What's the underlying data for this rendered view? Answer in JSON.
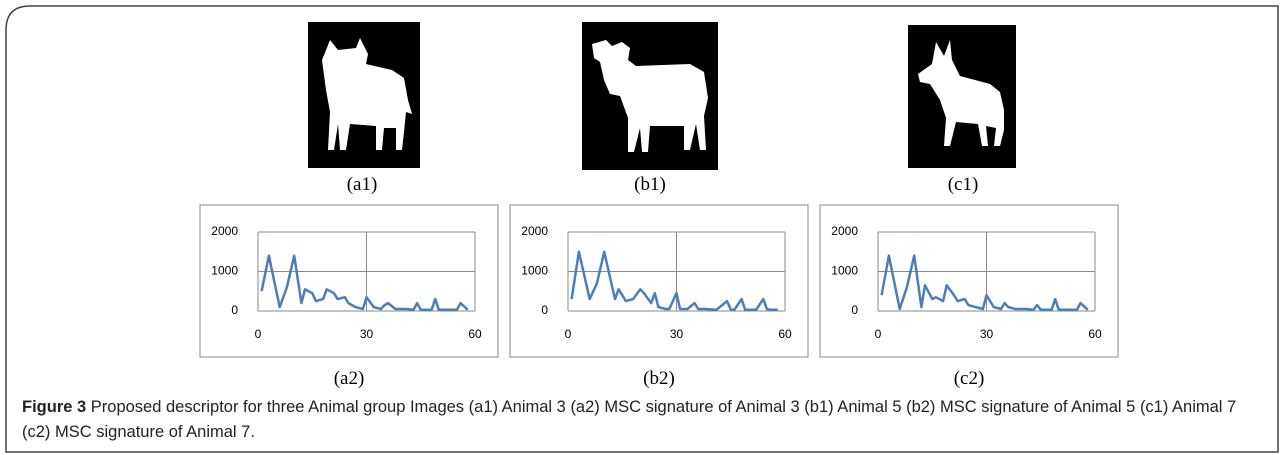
{
  "images": [
    "(a1)",
    "(b1)",
    "(c1)"
  ],
  "chart_data": [
    {
      "type": "line",
      "label": "(a2)",
      "color": "#4a7ebb",
      "x": [
        1,
        3,
        6,
        8,
        10,
        12,
        13,
        15,
        16,
        18,
        19,
        21,
        22,
        24,
        25,
        27,
        29,
        30,
        32,
        34,
        35,
        36,
        38,
        41,
        43,
        44,
        45,
        48,
        49,
        50,
        53,
        55,
        56,
        58
      ],
      "values": [
        500,
        1400,
        100,
        600,
        1400,
        200,
        550,
        450,
        250,
        300,
        550,
        450,
        300,
        350,
        200,
        100,
        50,
        350,
        100,
        50,
        150,
        200,
        50,
        50,
        30,
        200,
        30,
        30,
        300,
        30,
        30,
        30,
        200,
        30
      ],
      "xlim": [
        0,
        60
      ],
      "ylim": [
        0,
        2000
      ],
      "xticks": [
        0,
        30,
        60
      ],
      "yticks": [
        0,
        1000,
        2000
      ]
    },
    {
      "type": "line",
      "label": "(b2)",
      "color": "#4a7ebb",
      "x": [
        1,
        3,
        6,
        8,
        10,
        13,
        14,
        16,
        18,
        20,
        21,
        23,
        24,
        25,
        27,
        28,
        30,
        31,
        33,
        35,
        36,
        38,
        41,
        44,
        45,
        46,
        48,
        49,
        50,
        52,
        54,
        55,
        56,
        58
      ],
      "values": [
        300,
        1500,
        300,
        700,
        1500,
        300,
        550,
        250,
        300,
        550,
        450,
        200,
        450,
        100,
        50,
        50,
        450,
        50,
        50,
        200,
        50,
        50,
        30,
        250,
        30,
        30,
        300,
        30,
        30,
        30,
        300,
        50,
        30,
        30
      ],
      "xlim": [
        0,
        60
      ],
      "ylim": [
        0,
        2000
      ],
      "xticks": [
        0,
        30,
        60
      ],
      "yticks": [
        0,
        1000,
        2000
      ]
    },
    {
      "type": "line",
      "label": "(c2)",
      "color": "#4a7ebb",
      "x": [
        1,
        3,
        6,
        8,
        10,
        12,
        13,
        15,
        16,
        18,
        19,
        21,
        22,
        24,
        25,
        27,
        29,
        30,
        32,
        34,
        35,
        36,
        38,
        41,
        43,
        44,
        45,
        48,
        49,
        50,
        53,
        55,
        56,
        58
      ],
      "values": [
        400,
        1400,
        50,
        600,
        1400,
        100,
        650,
        300,
        350,
        250,
        650,
        400,
        250,
        300,
        150,
        100,
        50,
        400,
        100,
        50,
        200,
        100,
        50,
        50,
        30,
        150,
        30,
        30,
        300,
        30,
        30,
        30,
        200,
        30
      ],
      "xlim": [
        0,
        60
      ],
      "ylim": [
        0,
        2000
      ],
      "xticks": [
        0,
        30,
        60
      ],
      "yticks": [
        0,
        1000,
        2000
      ]
    }
  ],
  "caption": {
    "label": "Figure 3",
    "text": "Proposed descriptor for three Animal group Images (a1) Animal 3 (a2) MSC signature of Animal 3 (b1) Animal 5 (b2) MSC signature of Animal 5 (c1) Animal 7 (c2) MSC signature of Animal 7."
  }
}
